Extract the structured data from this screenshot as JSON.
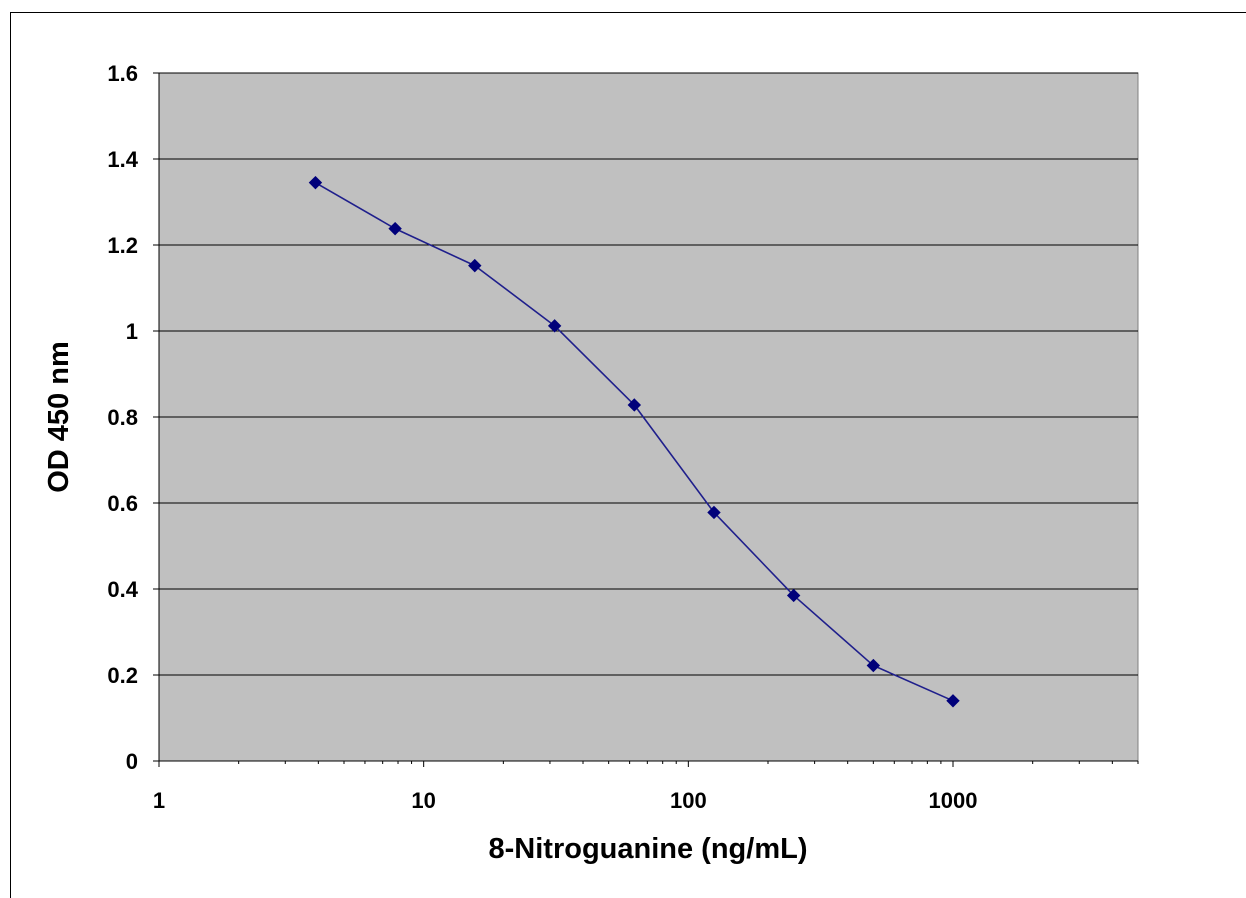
{
  "chart_data": {
    "type": "scatter",
    "xscale": "log",
    "xlabel": "8-Nitroguanine (ng/mL)",
    "ylabel": "OD 450 nm",
    "xlim": [
      1,
      5000
    ],
    "ylim": [
      0,
      1.6
    ],
    "xticks": [
      {
        "value": 1,
        "label": "1"
      },
      {
        "value": 10,
        "label": "10"
      },
      {
        "value": 100,
        "label": "100"
      },
      {
        "value": 1000,
        "label": "1000"
      }
    ],
    "yticks": [
      {
        "value": 0,
        "label": "0"
      },
      {
        "value": 0.2,
        "label": "0.2"
      },
      {
        "value": 0.4,
        "label": "0.4"
      },
      {
        "value": 0.6,
        "label": "0.6"
      },
      {
        "value": 0.8,
        "label": "0.8"
      },
      {
        "value": 1,
        "label": "1"
      },
      {
        "value": 1.2,
        "label": "1.2"
      },
      {
        "value": 1.4,
        "label": "1.4"
      },
      {
        "value": 1.6,
        "label": "1.6"
      }
    ],
    "grid": "horizontal",
    "legend": "none",
    "series": [
      {
        "x": [
          3.9,
          7.8,
          15.6,
          31.25,
          62.5,
          125,
          250,
          500,
          1000
        ],
        "y": [
          1.345,
          1.238,
          1.152,
          1.012,
          0.828,
          0.578,
          0.385,
          0.222,
          0.14
        ],
        "color": "#1f1f8c",
        "marker": "diamond",
        "marker_color": "#00007a"
      }
    ],
    "plot_background": "#c0c0c0"
  }
}
